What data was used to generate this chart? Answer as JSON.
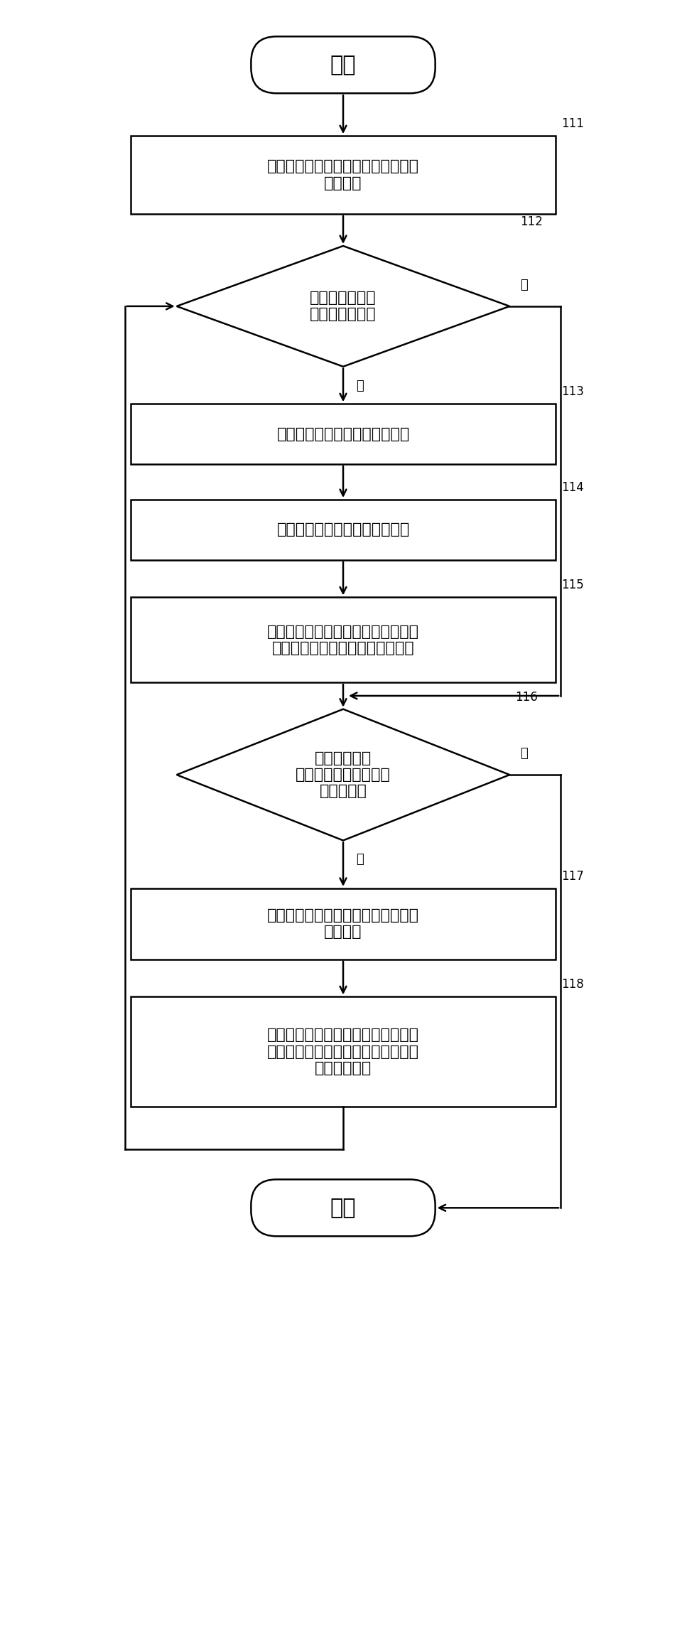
{
  "bg_color": "#ffffff",
  "border_color": "#000000",
  "text_color": "#000000",
  "start_label": "开始",
  "end_label": "结束",
  "n111_label": "获取集群故障案例引起故障的组件和\n故障症状",
  "n112_label": "判断该故障症状\n是否已经保存？",
  "n113_label": "获取组件的故障症状的检测方法",
  "n114_label": "获取组件的故障症状的修复方法",
  "n115_label": "保存组件的故障，组件的故障症状、\n该故障症状的检测方法和修复方法",
  "n116_label": "判断是否有引\n起该故障症状的另一个\n故障症状？",
  "n117_label": "获取另一个故障症状和故障症状所对\n应的组件",
  "n118_label": "保存该故障症状与另一个故障症状之\n间的依赖关系，把另一个故障症状作\n为该故障症状",
  "yes_label": "是",
  "no_label": "否",
  "tags": [
    "111",
    "112",
    "113",
    "114",
    "115",
    "116",
    "117",
    "118"
  ],
  "font_size_main": 16,
  "font_size_tag": 12,
  "font_size_yesno": 13,
  "line_width": 1.8
}
